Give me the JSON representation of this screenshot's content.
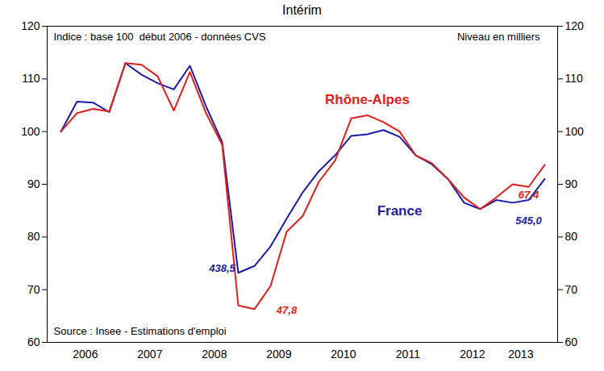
{
  "chart_data": {
    "type": "line",
    "title": "Intérim",
    "subtitle": "Indice : base 100  début 2006 - données CVS",
    "unit_note": "Niveau en milliers",
    "source": "Source : Insee - Estimations d'emploi",
    "categories": [
      null,
      "2006",
      null,
      null,
      null,
      "2007",
      null,
      null,
      null,
      "2008",
      null,
      null,
      null,
      "2009",
      null,
      null,
      null,
      "2010",
      null,
      null,
      null,
      "2011",
      null,
      null,
      null,
      "2012",
      null,
      null,
      "2013",
      null,
      null
    ],
    "series": [
      {
        "name": "France",
        "color": "#1c1ca8",
        "values": [
          100,
          105.7,
          105.5,
          103.7,
          113,
          110.8,
          109.2,
          108,
          112.5,
          104.8,
          98,
          73.2,
          74.5,
          78.2,
          83.5,
          88.5,
          92.5,
          95.5,
          99.2,
          99.5,
          100.3,
          99,
          95.5,
          93.8,
          91,
          86.5,
          85.3,
          87,
          86.5,
          87,
          91
        ],
        "name_position": {
          "x": 21,
          "y": 85
        }
      },
      {
        "name": "Rhône-Alpes",
        "color": "#e0201b",
        "values": [
          100,
          103.5,
          104.3,
          103.8,
          113,
          112.7,
          110.5,
          104,
          111.3,
          103.5,
          97.5,
          67,
          66.3,
          70.7,
          81,
          84,
          90.5,
          94.5,
          102.5,
          103.1,
          101.8,
          100,
          95.5,
          94,
          91,
          87.5,
          85.3,
          87.5,
          90,
          89.5,
          93.7
        ],
        "name_position": {
          "x": 19,
          "y": 106
        }
      }
    ],
    "annotations": [
      {
        "text": "438,5",
        "x": 10,
        "y": 74,
        "color": "#1c1ca8"
      },
      {
        "text": "47,8",
        "x": 14,
        "y": 66,
        "color": "#e0201b"
      },
      {
        "text": "67,4",
        "x": 29,
        "y": 88,
        "color": "#e0201b"
      },
      {
        "text": "545,0",
        "x": 29,
        "y": 83,
        "color": "#1c1ca8"
      }
    ],
    "ylim": [
      60,
      120
    ],
    "yticks": [
      60,
      70,
      80,
      90,
      100,
      110,
      120
    ],
    "grid": false,
    "legend": false
  }
}
